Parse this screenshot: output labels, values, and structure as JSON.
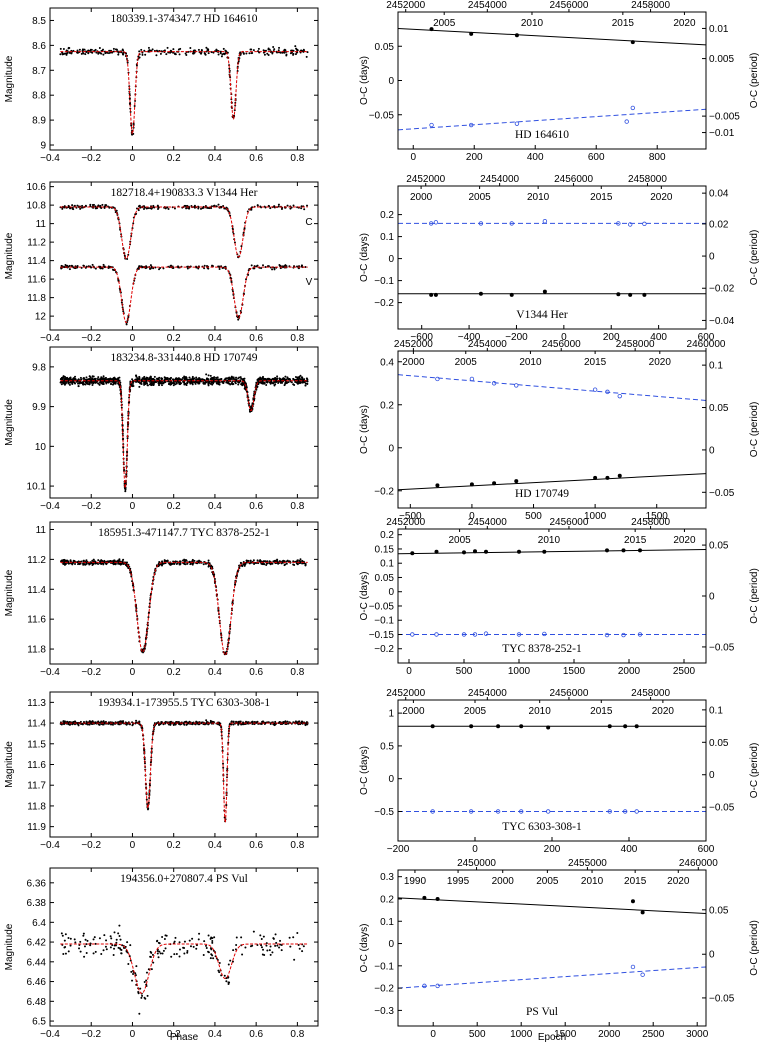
{
  "figure": {
    "left_xlabel": "Phase",
    "right_xlabel": "Epoch",
    "left_ylabel": "Magnitude",
    "right_ylabel_left": "O-C (days)",
    "right_ylabel_right": "O-C (period)"
  },
  "chart_data": [
    {
      "panel": "lc1",
      "type": "scatter",
      "title": "180339.1-374347.7     HD 164610",
      "xlim": [
        -0.4,
        0.9
      ],
      "ylim": [
        9.02,
        8.45
      ],
      "yticks": [
        8.5,
        8.6,
        8.7,
        8.8,
        8.9,
        9
      ],
      "xticks": [
        -0.4,
        -0.2,
        0,
        0.2,
        0.4,
        0.6,
        0.8
      ],
      "curves": [
        {
          "label": "",
          "base": 8.625,
          "eclipses": [
            {
              "phase": 0.0,
              "depth": 0.33,
              "width": 0.012
            },
            {
              "phase": 0.49,
              "depth": 0.27,
              "width": 0.012
            }
          ]
        }
      ],
      "scatter_sigma": 0.018,
      "n_points": 380
    },
    {
      "panel": "lc2",
      "type": "scatter",
      "title": "182718.4+190833.3     V1344 Her",
      "xlim": [
        -0.4,
        0.9
      ],
      "ylim": [
        12.15,
        10.55
      ],
      "yticks": [
        10.6,
        10.8,
        11,
        11.2,
        11.4,
        11.6,
        11.8,
        12
      ],
      "xticks": [
        -0.4,
        -0.2,
        0,
        0.2,
        0.4,
        0.6,
        0.8
      ],
      "curves": [
        {
          "label": "C",
          "base": 10.82,
          "eclipses": [
            {
              "phase": -0.03,
              "depth": 0.56,
              "width": 0.022
            },
            {
              "phase": 0.515,
              "depth": 0.54,
              "width": 0.022
            }
          ]
        },
        {
          "label": "V",
          "base": 11.47,
          "eclipses": [
            {
              "phase": -0.03,
              "depth": 0.6,
              "width": 0.022
            },
            {
              "phase": 0.515,
              "depth": 0.55,
              "width": 0.022
            }
          ]
        }
      ],
      "scatter_sigma": 0.025,
      "n_points": 260
    },
    {
      "panel": "lc3",
      "type": "scatter",
      "title": "183234.8-331440.8     HD 170749",
      "xlim": [
        -0.4,
        0.9
      ],
      "ylim": [
        10.13,
        9.75
      ],
      "yticks": [
        9.8,
        9.9,
        10,
        10.1
      ],
      "xticks": [
        -0.4,
        -0.2,
        0,
        0.2,
        0.4,
        0.6,
        0.8
      ],
      "curves": [
        {
          "label": "",
          "base": 9.835,
          "eclipses": [
            {
              "phase": -0.035,
              "depth": 0.27,
              "width": 0.01
            },
            {
              "phase": 0.575,
              "depth": 0.075,
              "width": 0.014
            }
          ]
        }
      ],
      "scatter_sigma": 0.012,
      "n_points": 1400
    },
    {
      "panel": "lc4",
      "type": "scatter",
      "title": "185951.3-471147.7     TYC 8378-252-1",
      "xlim": [
        -0.4,
        0.9
      ],
      "ylim": [
        11.9,
        10.95
      ],
      "yticks": [
        11,
        11.2,
        11.4,
        11.6,
        11.8
      ],
      "xticks": [
        -0.4,
        -0.2,
        0,
        0.2,
        0.4,
        0.6,
        0.8
      ],
      "curves": [
        {
          "label": "",
          "base": 11.22,
          "eclipses": [
            {
              "phase": 0.05,
              "depth": 0.6,
              "width": 0.028
            },
            {
              "phase": 0.45,
              "depth": 0.62,
              "width": 0.028
            }
          ]
        }
      ],
      "scatter_sigma": 0.02,
      "n_points": 700
    },
    {
      "panel": "lc5",
      "type": "scatter",
      "title": "193934.1-173955.5     TYC 6303-308-1",
      "xlim": [
        -0.4,
        0.9
      ],
      "ylim": [
        11.95,
        11.25
      ],
      "yticks": [
        11.3,
        11.4,
        11.5,
        11.6,
        11.7,
        11.8,
        11.9
      ],
      "xticks": [
        -0.4,
        -0.2,
        0,
        0.2,
        0.4,
        0.6,
        0.8
      ],
      "curves": [
        {
          "label": "",
          "base": 11.4,
          "eclipses": [
            {
              "phase": 0.075,
              "depth": 0.41,
              "width": 0.012
            },
            {
              "phase": 0.45,
              "depth": 0.48,
              "width": 0.008
            }
          ]
        }
      ],
      "scatter_sigma": 0.01,
      "n_points": 650
    },
    {
      "panel": "lc6",
      "type": "scatter",
      "title": "194356.0+270807.4     PS Vul",
      "xlim": [
        -0.4,
        0.9
      ],
      "ylim": [
        6.505,
        6.345
      ],
      "yticks": [
        6.36,
        6.38,
        6.4,
        6.42,
        6.44,
        6.46,
        6.48,
        6.5
      ],
      "xticks": [
        -0.4,
        -0.2,
        0,
        0.2,
        0.4,
        0.6,
        0.8
      ],
      "curves": [
        {
          "label": "",
          "base": 6.422,
          "eclipses": [
            {
              "phase": 0.045,
              "depth": 0.05,
              "width": 0.035
            },
            {
              "phase": 0.45,
              "depth": 0.035,
              "width": 0.03
            }
          ]
        }
      ],
      "scatter_sigma": 0.018,
      "n_points": 240
    },
    {
      "panel": "oc1",
      "type": "line",
      "title": "HD 164610",
      "xlim": [
        -50,
        960
      ],
      "ylim": [
        -0.1,
        0.1
      ],
      "xticks": [
        0,
        200,
        400,
        600,
        800
      ],
      "yticks": [
        -0.05,
        0,
        0.05
      ],
      "top_jd_ticks": [
        2452000,
        2454000,
        2456000,
        2458000
      ],
      "top_year_ticks": [
        2005,
        2010,
        2015,
        2020
      ],
      "top_jd_pos": [
        0.025,
        0.29,
        0.555,
        0.82
      ],
      "top_year_pos": [
        0.15,
        0.435,
        0.73,
        0.93
      ],
      "right_ticks": [
        0.01,
        0.005,
        -0.005,
        -0.01
      ],
      "right_ticks_pos": [
        0.12,
        0.34,
        0.76,
        0.88
      ],
      "primary": {
        "points": [
          [
            60,
            0.075
          ],
          [
            190,
            0.068
          ],
          [
            340,
            0.066
          ],
          [
            720,
            0.056
          ]
        ],
        "fit": [
          [
            -50,
            0.076
          ],
          [
            960,
            0.052
          ]
        ]
      },
      "secondary": {
        "points": [
          [
            60,
            -0.065
          ],
          [
            190,
            -0.065
          ],
          [
            340,
            -0.063
          ],
          [
            720,
            -0.04
          ],
          [
            700,
            -0.06
          ]
        ],
        "fit": [
          [
            -50,
            -0.072
          ],
          [
            960,
            -0.042
          ]
        ]
      }
    },
    {
      "panel": "oc2",
      "type": "line",
      "title": "V1344 Her",
      "xlim": [
        -700,
        600
      ],
      "ylim": [
        -0.32,
        0.33
      ],
      "xticks": [
        -600,
        -400,
        -200,
        0,
        200,
        400,
        600
      ],
      "yticks": [
        -0.2,
        -0.1,
        0,
        0.1,
        0.2
      ],
      "top_jd_ticks": [
        2452000,
        2454000,
        2456000,
        2458000
      ],
      "top_year_ticks": [
        2000,
        2005,
        2010,
        2015,
        2020
      ],
      "top_jd_pos": [
        0.09,
        0.33,
        0.57,
        0.81
      ],
      "top_year_pos": [
        0.075,
        0.265,
        0.455,
        0.66,
        0.855
      ],
      "right_ticks": [
        0.04,
        0.02,
        0,
        -0.02,
        -0.04
      ],
      "right_ticks_pos": [
        0.05,
        0.265,
        0.49,
        0.715,
        0.94
      ],
      "primary": {
        "points": [
          [
            -560,
            -0.165
          ],
          [
            -540,
            -0.165
          ],
          [
            -350,
            -0.16
          ],
          [
            -220,
            -0.165
          ],
          [
            -80,
            -0.15
          ],
          [
            230,
            -0.162
          ],
          [
            280,
            -0.165
          ],
          [
            340,
            -0.165
          ]
        ],
        "fit": [
          [
            -700,
            -0.16
          ],
          [
            600,
            -0.16
          ]
        ]
      },
      "secondary": {
        "points": [
          [
            -560,
            0.16
          ],
          [
            -540,
            0.165
          ],
          [
            -350,
            0.16
          ],
          [
            -220,
            0.16
          ],
          [
            -80,
            0.17
          ],
          [
            230,
            0.16
          ],
          [
            280,
            0.155
          ],
          [
            340,
            0.158
          ]
        ],
        "fit": [
          [
            -700,
            0.16
          ],
          [
            600,
            0.16
          ]
        ]
      }
    },
    {
      "panel": "oc3",
      "type": "line",
      "title": "HD 170749",
      "xlim": [
        -600,
        1900
      ],
      "ylim": [
        -0.28,
        0.45
      ],
      "xticks": [
        -500,
        0,
        500,
        1000,
        1500
      ],
      "yticks": [
        -0.2,
        0,
        0.2,
        0.4
      ],
      "top_jd_ticks": [
        2452000,
        2454000,
        2456000,
        2458000,
        2460000
      ],
      "top_year_ticks": [
        2000,
        2005,
        2010,
        2015,
        2020
      ],
      "top_jd_pos": [
        0.05,
        0.29,
        0.53,
        0.77,
        1.0
      ],
      "top_year_pos": [
        0.05,
        0.22,
        0.43,
        0.64,
        0.85
      ],
      "right_ticks": [
        0.1,
        0.05,
        0,
        -0.05
      ],
      "right_ticks_pos": [
        0.09,
        0.36,
        0.63,
        0.9
      ],
      "primary": {
        "points": [
          [
            -280,
            -0.175
          ],
          [
            0,
            -0.17
          ],
          [
            180,
            -0.165
          ],
          [
            360,
            -0.155
          ],
          [
            1000,
            -0.14
          ],
          [
            1100,
            -0.14
          ],
          [
            1200,
            -0.13
          ]
        ],
        "fit": [
          [
            -600,
            -0.195
          ],
          [
            1900,
            -0.12
          ]
        ]
      },
      "secondary": {
        "points": [
          [
            -280,
            0.32
          ],
          [
            0,
            0.32
          ],
          [
            180,
            0.3
          ],
          [
            360,
            0.29
          ],
          [
            1000,
            0.27
          ],
          [
            1100,
            0.26
          ],
          [
            1200,
            0.24
          ]
        ],
        "fit": [
          [
            -600,
            0.34
          ],
          [
            1900,
            0.22
          ]
        ]
      }
    },
    {
      "panel": "oc4",
      "type": "line",
      "title": "TYC 8378-252-1",
      "xlim": [
        -100,
        2700
      ],
      "ylim": [
        -0.25,
        0.22
      ],
      "xticks": [
        0,
        500,
        1000,
        1500,
        2000,
        2500
      ],
      "yticks": [
        -0.2,
        -0.15,
        -0.1,
        -0.05,
        0,
        0.05,
        0.1,
        0.15,
        0.2
      ],
      "top_jd_ticks": [
        2452000,
        2454000,
        2456000,
        2458000
      ],
      "top_year_ticks": [
        2005,
        2010,
        2015,
        2020
      ],
      "top_jd_pos": [
        0.025,
        0.29,
        0.555,
        0.82
      ],
      "top_year_pos": [
        0.2,
        0.49,
        0.77,
        0.93
      ],
      "right_ticks": [
        0.05,
        0,
        -0.05
      ],
      "right_ticks_pos": [
        0.12,
        0.5,
        0.88
      ],
      "primary": {
        "points": [
          [
            30,
            0.135
          ],
          [
            250,
            0.14
          ],
          [
            500,
            0.138
          ],
          [
            600,
            0.142
          ],
          [
            700,
            0.14
          ],
          [
            1000,
            0.14
          ],
          [
            1230,
            0.14
          ],
          [
            1800,
            0.145
          ],
          [
            1950,
            0.145
          ],
          [
            2100,
            0.145
          ]
        ],
        "fit": [
          [
            -100,
            0.133
          ],
          [
            2700,
            0.148
          ]
        ]
      },
      "secondary": {
        "points": [
          [
            30,
            -0.15
          ],
          [
            250,
            -0.15
          ],
          [
            500,
            -0.15
          ],
          [
            600,
            -0.15
          ],
          [
            700,
            -0.147
          ],
          [
            1000,
            -0.15
          ],
          [
            1230,
            -0.148
          ],
          [
            1800,
            -0.152
          ],
          [
            1950,
            -0.152
          ],
          [
            2100,
            -0.15
          ]
        ],
        "fit": [
          [
            -100,
            -0.15
          ],
          [
            2700,
            -0.15
          ]
        ]
      }
    },
    {
      "panel": "oc5",
      "type": "line",
      "title": "TYC 6303-308-1",
      "xlim": [
        -200,
        600
      ],
      "ylim": [
        -0.95,
        1.2
      ],
      "xticks": [
        -200,
        0,
        200,
        400,
        600
      ],
      "yticks": [
        -0.5,
        0,
        0.5,
        1
      ],
      "top_jd_ticks": [
        2452000,
        2454000,
        2456000,
        2458000
      ],
      "top_year_ticks": [
        2000,
        2005,
        2010,
        2015,
        2020
      ],
      "top_jd_pos": [
        0.025,
        0.29,
        0.555,
        0.82
      ],
      "top_year_pos": [
        0.05,
        0.25,
        0.46,
        0.66,
        0.86
      ],
      "right_ticks": [
        0.1,
        0.05,
        0,
        -0.05
      ],
      "right_ticks_pos": [
        0.07,
        0.3,
        0.53,
        0.76
      ],
      "primary": {
        "points": [
          [
            -110,
            0.8
          ],
          [
            -10,
            0.8
          ],
          [
            60,
            0.8
          ],
          [
            120,
            0.8
          ],
          [
            190,
            0.78
          ],
          [
            350,
            0.8
          ],
          [
            390,
            0.8
          ],
          [
            420,
            0.8
          ]
        ],
        "fit": [
          [
            -200,
            0.8
          ],
          [
            600,
            0.8
          ]
        ]
      },
      "secondary": {
        "points": [
          [
            -110,
            -0.5
          ],
          [
            -10,
            -0.5
          ],
          [
            60,
            -0.5
          ],
          [
            120,
            -0.5
          ],
          [
            190,
            -0.5
          ],
          [
            350,
            -0.5
          ],
          [
            390,
            -0.5
          ],
          [
            420,
            -0.5
          ]
        ],
        "fit": [
          [
            -200,
            -0.5
          ],
          [
            600,
            -0.5
          ]
        ]
      }
    },
    {
      "panel": "oc6",
      "type": "line",
      "title": "PS Vul",
      "xlim": [
        -400,
        3100
      ],
      "ylim": [
        -0.37,
        0.33
      ],
      "xticks": [
        0,
        500,
        1000,
        1500,
        2000,
        2500,
        3000
      ],
      "yticks": [
        -0.3,
        -0.2,
        -0.1,
        0,
        0.1,
        0.2,
        0.3
      ],
      "top_jd_ticks": [
        2450000,
        2455000,
        2460000
      ],
      "top_year_ticks": [
        1990,
        1995,
        2000,
        2005,
        2010,
        2015,
        2020
      ],
      "top_jd_pos": [
        0.255,
        0.615,
        0.975
      ],
      "top_year_pos": [
        0.055,
        0.195,
        0.34,
        0.485,
        0.63,
        0.77,
        0.91
      ],
      "right_ticks": [
        0.05,
        0,
        -0.05
      ],
      "right_ticks_pos": [
        0.255,
        0.54,
        0.82
      ],
      "primary": {
        "points": [
          [
            -100,
            0.205
          ],
          [
            50,
            0.2
          ],
          [
            2270,
            0.19
          ],
          [
            2380,
            0.14
          ]
        ],
        "fit": [
          [
            -400,
            0.205
          ],
          [
            3100,
            0.135
          ]
        ]
      },
      "secondary": {
        "points": [
          [
            -100,
            -0.19
          ],
          [
            50,
            -0.19
          ],
          [
            2270,
            -0.105
          ],
          [
            2380,
            -0.14
          ]
        ],
        "fit": [
          [
            -400,
            -0.2
          ],
          [
            3100,
            -0.105
          ]
        ]
      }
    }
  ]
}
